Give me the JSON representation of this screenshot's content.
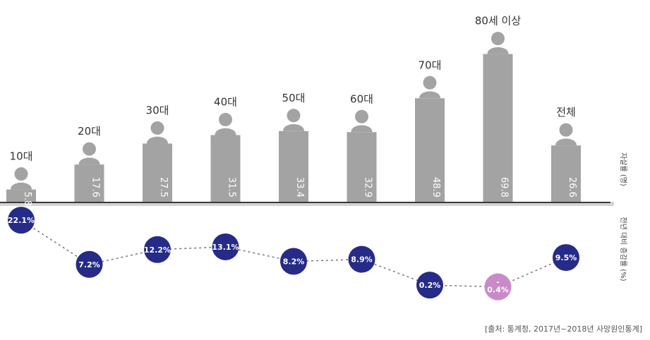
{
  "chart_data": [
    {
      "type": "bar",
      "categories": [
        "10대",
        "20대",
        "30대",
        "40대",
        "50대",
        "60대",
        "70대",
        "80세 이상",
        "전체"
      ],
      "values": [
        5.8,
        17.6,
        27.5,
        31.5,
        33.4,
        32.9,
        48.9,
        69.8,
        26.6
      ],
      "value_labels": [
        "5.8",
        "17.6",
        "27.5",
        "31.5",
        "33.4",
        "32.9",
        "48.9",
        "69.8",
        "26.6"
      ],
      "ylabel": "자살률 (명)",
      "ylim": [
        0,
        70
      ],
      "grid": false
    },
    {
      "type": "line",
      "categories": [
        "10대",
        "20대",
        "30대",
        "40대",
        "50대",
        "60대",
        "70대",
        "80세 이상",
        "전체"
      ],
      "values": [
        22.1,
        7.2,
        12.2,
        13.1,
        8.2,
        8.9,
        0.2,
        -0.4,
        9.5
      ],
      "value_labels": [
        "22.1%",
        "7.2%",
        "12.2%",
        "13.1%",
        "8.2%",
        "8.9%",
        "0.2%",
        "-\n0.4%",
        "9.5%"
      ],
      "ylabel": "전년 대비 증감률 (%)",
      "grid": false
    }
  ],
  "colors": {
    "bar": "#a3a3a3",
    "dot": "#252b86",
    "dot_negative": "#c98ac8",
    "line": "#777777",
    "baseline": "#3a3a3a"
  },
  "source": "[출처: 통계청, 2017년~2018년 사망원인통계]"
}
